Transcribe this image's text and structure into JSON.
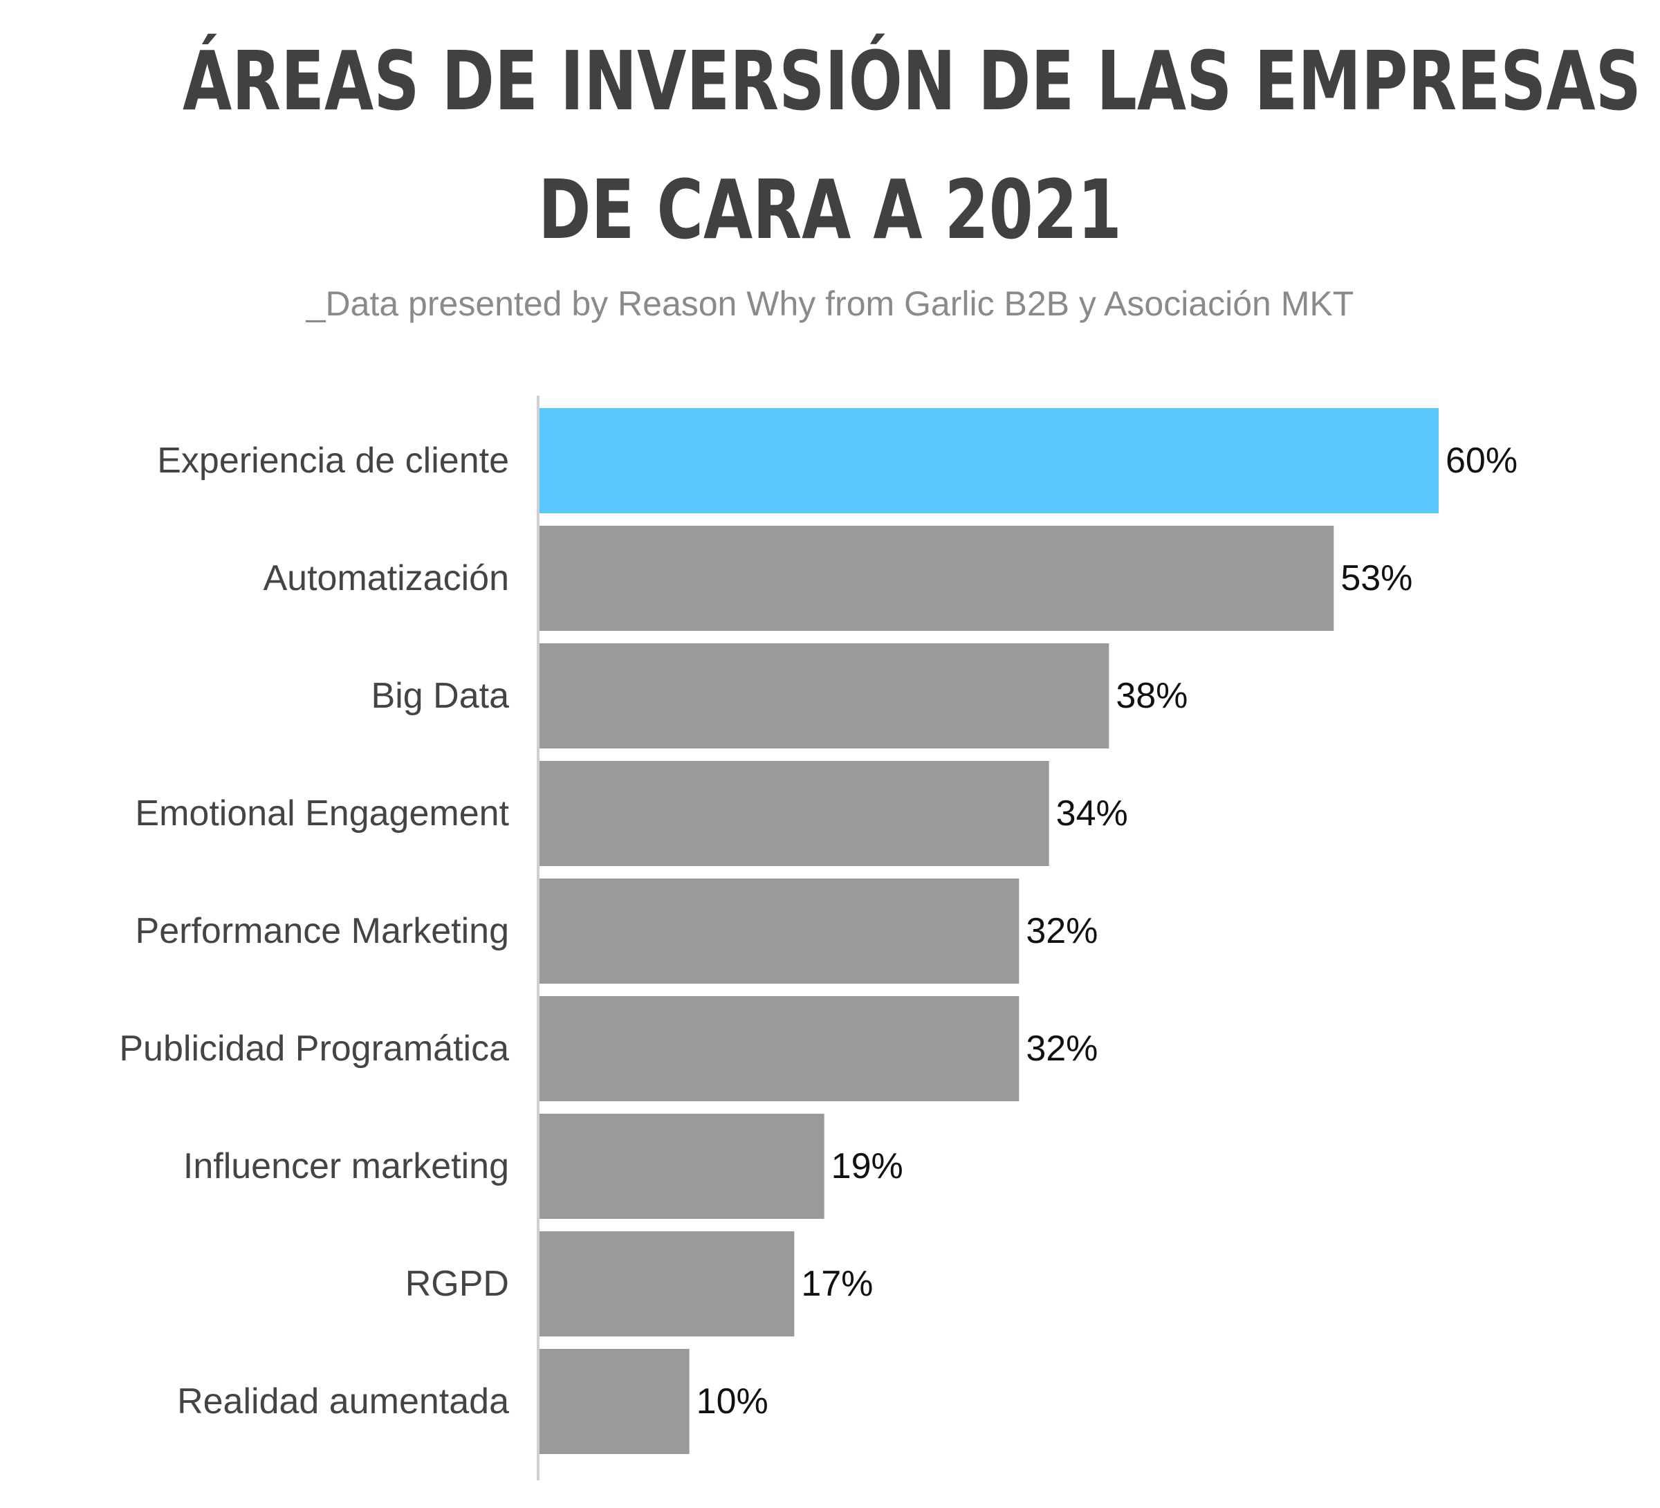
{
  "title": {
    "line1": "ÁREAS DE INVERSIÓN DE LAS EMPRESAS",
    "line2": "DE CARA A 2021"
  },
  "subtitle": "_Data presented by Reason Why from Garlic B2B y Asociación MKT",
  "colors": {
    "highlight": "#5AC8FA",
    "bar": "#9A9A9A",
    "axis": "#d0d0d0",
    "title": "#414141"
  },
  "chart_data": {
    "type": "bar",
    "orientation": "horizontal",
    "categories": [
      "Experiencia de cliente",
      "Automatización",
      "Big Data",
      "Emotional Engagement",
      "Performance Marketing",
      "Publicidad Programática",
      "Influencer marketing",
      "RGPD",
      "Realidad aumentada"
    ],
    "values": [
      60,
      53,
      38,
      34,
      32,
      32,
      19,
      17,
      10
    ],
    "value_labels": [
      "60%",
      "53%",
      "38%",
      "34%",
      "32%",
      "32%",
      "19%",
      "17%",
      "10%"
    ],
    "highlight_index": 0,
    "xlim": [
      0,
      60
    ],
    "grid": false
  }
}
